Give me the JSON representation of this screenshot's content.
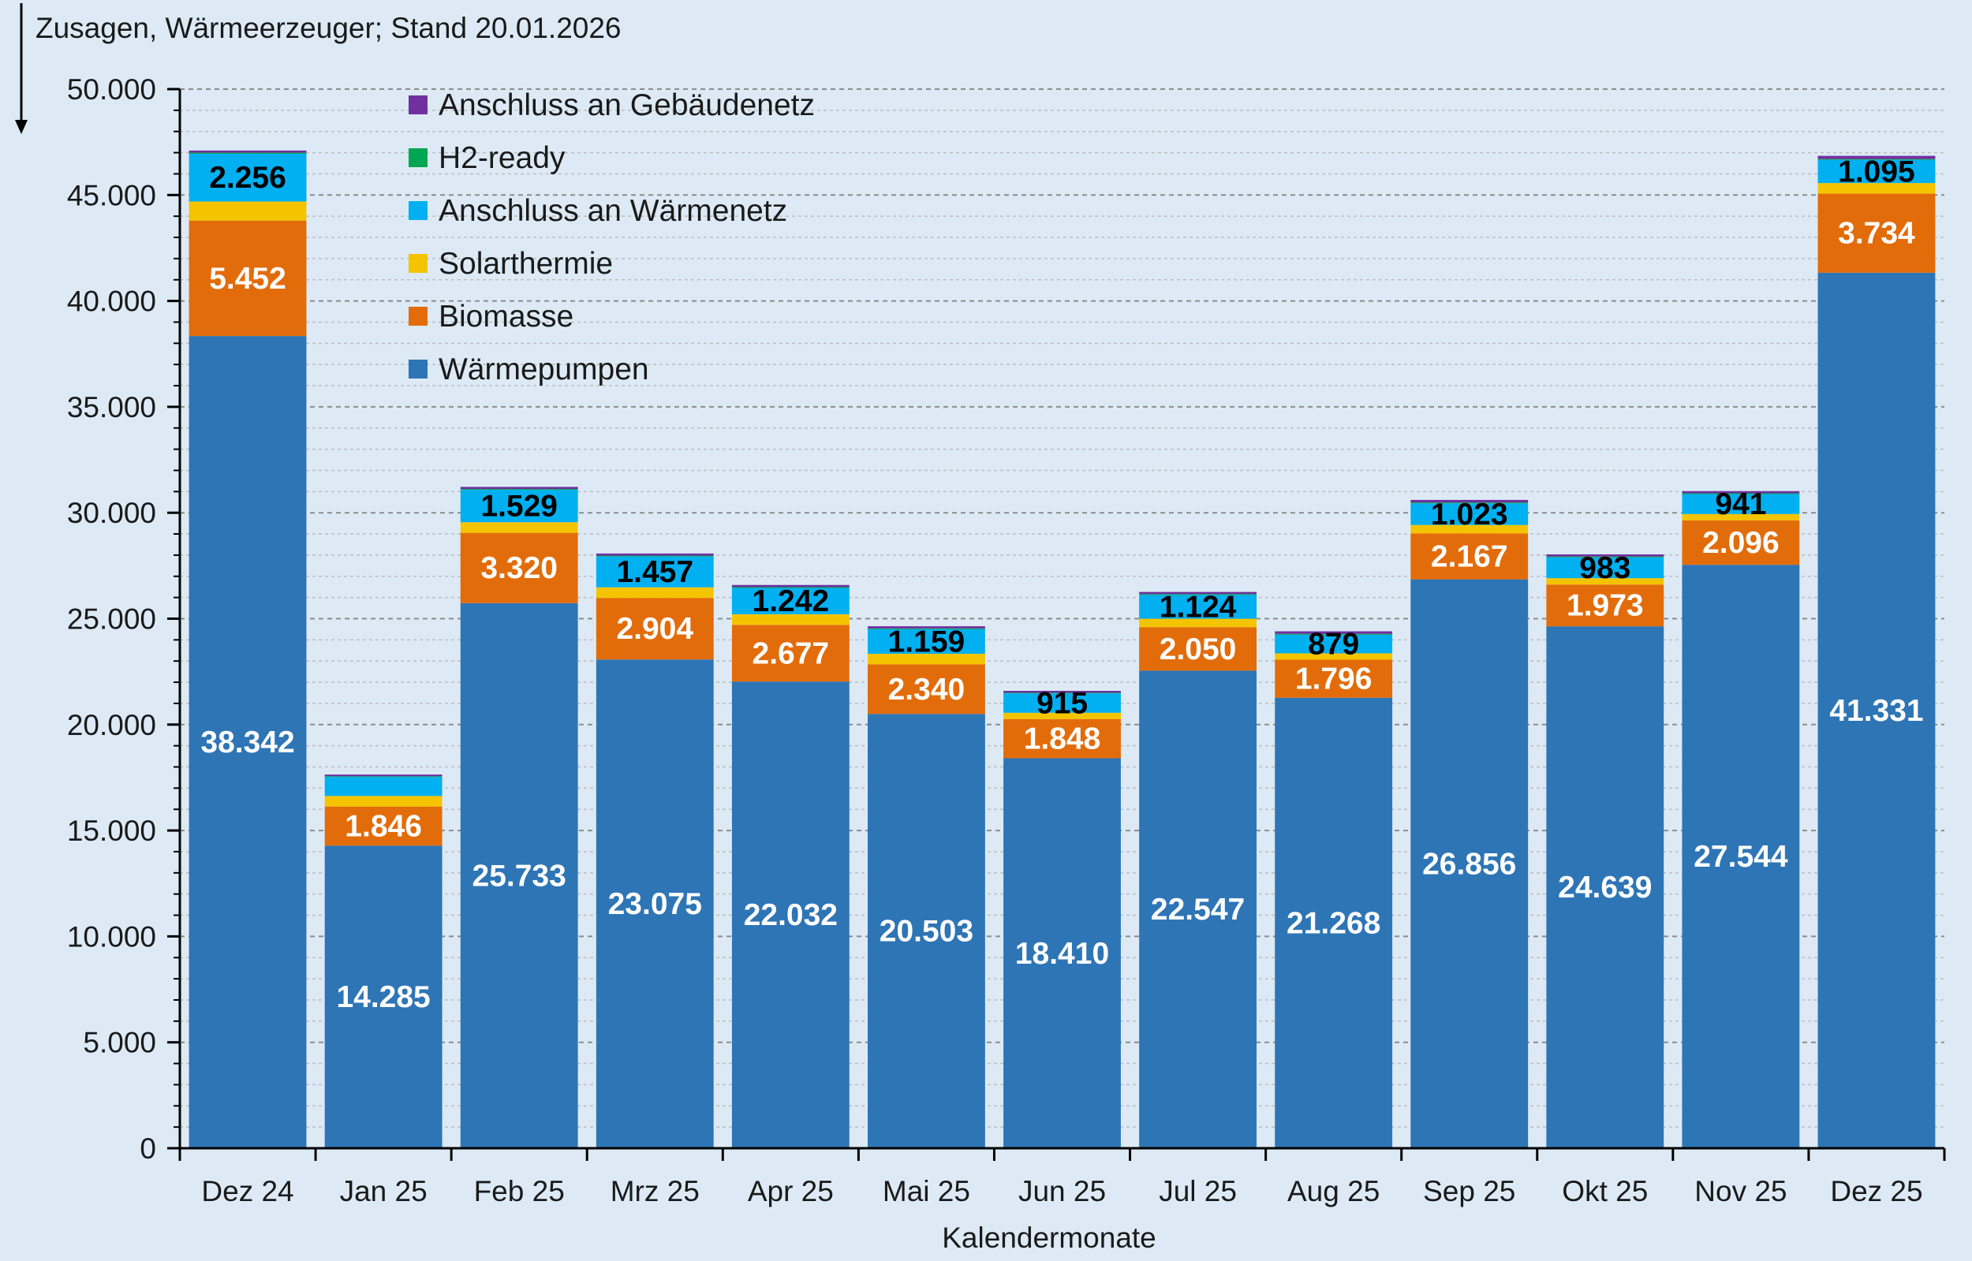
{
  "chart_data": {
    "type": "bar",
    "stacked": true,
    "title": "Zusagen, Wärmeerzeuger; Stand 20.01.2026",
    "xlabel": "Kalendermonate",
    "ylabel": "",
    "ylim": [
      0,
      50000
    ],
    "yticks": [
      0,
      5000,
      10000,
      15000,
      20000,
      25000,
      30000,
      35000,
      40000,
      45000,
      50000
    ],
    "ytick_labels": [
      "0",
      "5.000",
      "10.000",
      "15.000",
      "20.000",
      "25.000",
      "30.000",
      "35.000",
      "40.000",
      "45.000",
      "50.000"
    ],
    "grid": true,
    "legend_position": "top-left",
    "categories": [
      "Dez 24",
      "Jan 25",
      "Feb 25",
      "Mrz 25",
      "Apr 25",
      "Mai 25",
      "Jun 25",
      "Jul 25",
      "Aug 25",
      "Sep 25",
      "Okt 25",
      "Nov 25",
      "Dez 25"
    ],
    "series": [
      {
        "name": "Wärmepumpen",
        "color": "#2e75b6",
        "label_color": "#ffffff",
        "values": [
          38342,
          14285,
          25733,
          23075,
          22032,
          20503,
          18410,
          22547,
          21268,
          26856,
          24639,
          27544,
          41331
        ],
        "labels": [
          "38.342",
          "14.285",
          "25.733",
          "23.075",
          "22.032",
          "20.503",
          "18.410",
          "22.547",
          "21.268",
          "26.856",
          "24.639",
          "27.544",
          "41.331"
        ]
      },
      {
        "name": "Biomasse",
        "color": "#e36c0a",
        "label_color": "#ffffff",
        "values": [
          5452,
          1846,
          3320,
          2904,
          2677,
          2340,
          1848,
          2050,
          1796,
          2167,
          1973,
          2096,
          3734
        ],
        "labels": [
          "5.452",
          "1.846",
          "3.320",
          "2.904",
          "2.677",
          "2.340",
          "1.848",
          "2.050",
          "1.796",
          "2.167",
          "1.973",
          "2.096",
          "3.734"
        ]
      },
      {
        "name": "Solarthermie",
        "color": "#f5c400",
        "values": [
          900,
          500,
          500,
          500,
          500,
          500,
          300,
          400,
          300,
          400,
          300,
          300,
          500
        ]
      },
      {
        "name": "Anschluss an Wärmenetz",
        "color": "#00b0f0",
        "label_color": "#000000",
        "values": [
          2256,
          900,
          1529,
          1457,
          1242,
          1159,
          915,
          1124,
          879,
          1023,
          983,
          941,
          1095
        ],
        "labels": [
          "2.256",
          "",
          "1.529",
          "1.457",
          "1.242",
          "1.159",
          "915",
          "1.124",
          "879",
          "1.023",
          "983",
          "941",
          "1.095"
        ]
      },
      {
        "name": "H2-ready",
        "color": "#00a651",
        "values": [
          50,
          30,
          40,
          40,
          40,
          40,
          30,
          40,
          40,
          40,
          40,
          40,
          40
        ]
      },
      {
        "name": "Anschluss an Gebäudenetz",
        "color": "#7030a0",
        "values": [
          100,
          80,
          100,
          100,
          100,
          100,
          90,
          100,
          120,
          120,
          100,
          100,
          150
        ]
      }
    ]
  }
}
